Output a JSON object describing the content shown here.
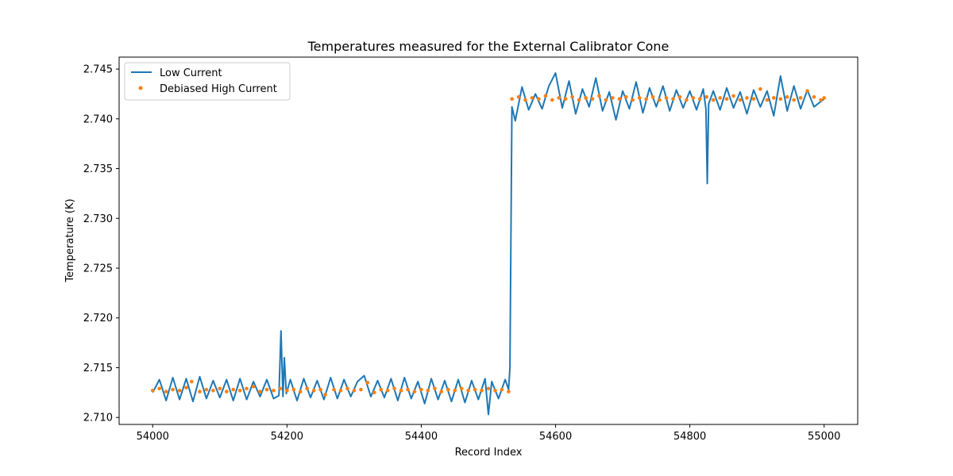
{
  "chart_data": {
    "type": "line",
    "title": "Temperatures measured for the External Calibrator Cone",
    "xlabel": "Record Index",
    "ylabel": "Temperature (K)",
    "xlim": [
      53950,
      55050
    ],
    "ylim": [
      2.7093,
      2.7462
    ],
    "x_ticks": [
      54000,
      54200,
      54400,
      54600,
      54800,
      55000
    ],
    "x_tick_labels": [
      "54000",
      "54200",
      "54400",
      "54600",
      "54800",
      "55000"
    ],
    "y_ticks": [
      2.71,
      2.715,
      2.72,
      2.725,
      2.73,
      2.735,
      2.74,
      2.745
    ],
    "y_tick_labels": [
      "2.710",
      "2.715",
      "2.720",
      "2.725",
      "2.730",
      "2.735",
      "2.740",
      "2.745"
    ],
    "grid": false,
    "legend_position": "top-left",
    "series": [
      {
        "name": "Low Current",
        "style": "line",
        "color": "#1f77b4",
        "x": [
          54000,
          54010,
          54020,
          54030,
          54040,
          54050,
          54060,
          54070,
          54080,
          54090,
          54100,
          54110,
          54120,
          54130,
          54140,
          54150,
          54160,
          54170,
          54180,
          54188,
          54191,
          54194,
          54196,
          54199,
          54205,
          54215,
          54225,
          54235,
          54245,
          54255,
          54265,
          54275,
          54285,
          54295,
          54305,
          54315,
          54325,
          54335,
          54345,
          54355,
          54365,
          54375,
          54385,
          54395,
          54405,
          54415,
          54425,
          54435,
          54445,
          54455,
          54465,
          54475,
          54485,
          54495,
          54500,
          54505,
          54515,
          54525,
          54530,
          54532,
          54535,
          54540,
          54550,
          54560,
          54570,
          54580,
          54590,
          54600,
          54610,
          54620,
          54630,
          54640,
          54650,
          54660,
          54670,
          54680,
          54690,
          54700,
          54710,
          54720,
          54730,
          54740,
          54750,
          54760,
          54770,
          54780,
          54790,
          54800,
          54810,
          54820,
          54824,
          54826,
          54828,
          54835,
          54845,
          54855,
          54865,
          54875,
          54885,
          54895,
          54905,
          54915,
          54925,
          54935,
          54945,
          54955,
          54965,
          54975,
          54985,
          55000
        ],
        "y": [
          2.7125,
          2.7138,
          2.7117,
          2.714,
          2.7118,
          2.7139,
          2.7116,
          2.7141,
          2.7119,
          2.7137,
          2.712,
          2.7138,
          2.7117,
          2.7139,
          2.7118,
          2.7136,
          2.7121,
          2.7138,
          2.7119,
          2.7122,
          2.7187,
          2.7121,
          2.716,
          2.7124,
          2.7138,
          2.7117,
          2.7139,
          2.712,
          2.7137,
          2.7118,
          2.714,
          2.7119,
          2.7138,
          2.7121,
          2.7136,
          2.7142,
          2.7121,
          2.7137,
          2.712,
          2.7139,
          2.7117,
          2.714,
          2.7119,
          2.7136,
          2.7114,
          2.7139,
          2.7118,
          2.7137,
          2.7116,
          2.7138,
          2.7115,
          2.7137,
          2.7118,
          2.7139,
          2.7103,
          2.7136,
          2.7119,
          2.7138,
          2.7128,
          2.715,
          2.7412,
          2.7398,
          2.7432,
          2.7409,
          2.7425,
          2.741,
          2.7433,
          2.7446,
          2.7411,
          2.7438,
          2.7405,
          2.743,
          2.7412,
          2.7441,
          2.7408,
          2.7427,
          2.7399,
          2.7428,
          2.741,
          2.7437,
          2.7406,
          2.7431,
          2.7412,
          2.7433,
          2.7408,
          2.7429,
          2.7411,
          2.7428,
          2.7409,
          2.743,
          2.741,
          2.7335,
          2.7415,
          2.7428,
          2.7409,
          2.7431,
          2.7411,
          2.7427,
          2.7405,
          2.7429,
          2.7412,
          2.7428,
          2.7403,
          2.7443,
          2.7408,
          2.7433,
          2.741,
          2.7429,
          2.7412,
          2.742
        ]
      },
      {
        "name": "Debiased High Current",
        "style": "scatter",
        "color": "#ff7f0e",
        "x": [
          54000,
          54010,
          54020,
          54030,
          54040,
          54050,
          54058,
          54070,
          54080,
          54090,
          54100,
          54110,
          54120,
          54130,
          54140,
          54150,
          54160,
          54170,
          54180,
          54190,
          54200,
          54210,
          54220,
          54230,
          54240,
          54250,
          54257,
          54270,
          54280,
          54290,
          54300,
          54310,
          54320,
          54330,
          54340,
          54350,
          54360,
          54370,
          54380,
          54390,
          54400,
          54410,
          54420,
          54430,
          54440,
          54450,
          54460,
          54470,
          54480,
          54490,
          54500,
          54510,
          54520,
          54530,
          54535,
          54545,
          54555,
          54565,
          54575,
          54585,
          54595,
          54605,
          54615,
          54625,
          54635,
          54645,
          54655,
          54665,
          54675,
          54685,
          54695,
          54705,
          54715,
          54725,
          54735,
          54745,
          54755,
          54765,
          54775,
          54785,
          54795,
          54805,
          54815,
          54825,
          54835,
          54845,
          54855,
          54865,
          54875,
          54885,
          54895,
          54905,
          54915,
          54925,
          54935,
          54945,
          54955,
          54965,
          54975,
          54985,
          54995,
          55000
        ],
        "y": [
          2.7127,
          2.7129,
          2.7126,
          2.7128,
          2.7127,
          2.713,
          2.7136,
          2.7126,
          2.7128,
          2.7127,
          2.7129,
          2.7126,
          2.7128,
          2.7127,
          2.7129,
          2.7131,
          2.7126,
          2.7128,
          2.7127,
          2.7129,
          2.7127,
          2.7128,
          2.7126,
          2.7129,
          2.7127,
          2.7128,
          2.7123,
          2.7128,
          2.7127,
          2.7129,
          2.7127,
          2.7128,
          2.7135,
          2.7125,
          2.7128,
          2.7127,
          2.7129,
          2.7127,
          2.7128,
          2.7126,
          2.7128,
          2.7127,
          2.7129,
          2.7126,
          2.7128,
          2.7127,
          2.7129,
          2.7127,
          2.7128,
          2.7127,
          2.7129,
          2.7127,
          2.7128,
          2.7126,
          2.742,
          2.7422,
          2.7419,
          2.7421,
          2.742,
          2.7423,
          2.7419,
          2.7421,
          2.742,
          2.7422,
          2.7419,
          2.7421,
          2.742,
          2.7423,
          2.7419,
          2.7421,
          2.742,
          2.7422,
          2.7419,
          2.7421,
          2.742,
          2.7422,
          2.7419,
          2.7421,
          2.742,
          2.7422,
          2.7419,
          2.7421,
          2.742,
          2.7422,
          2.7419,
          2.7421,
          2.742,
          2.7423,
          2.7419,
          2.7421,
          2.742,
          2.743,
          2.7419,
          2.7421,
          2.742,
          2.7422,
          2.7419,
          2.7421,
          2.7428,
          2.7422,
          2.7419,
          2.7421
        ]
      }
    ]
  }
}
